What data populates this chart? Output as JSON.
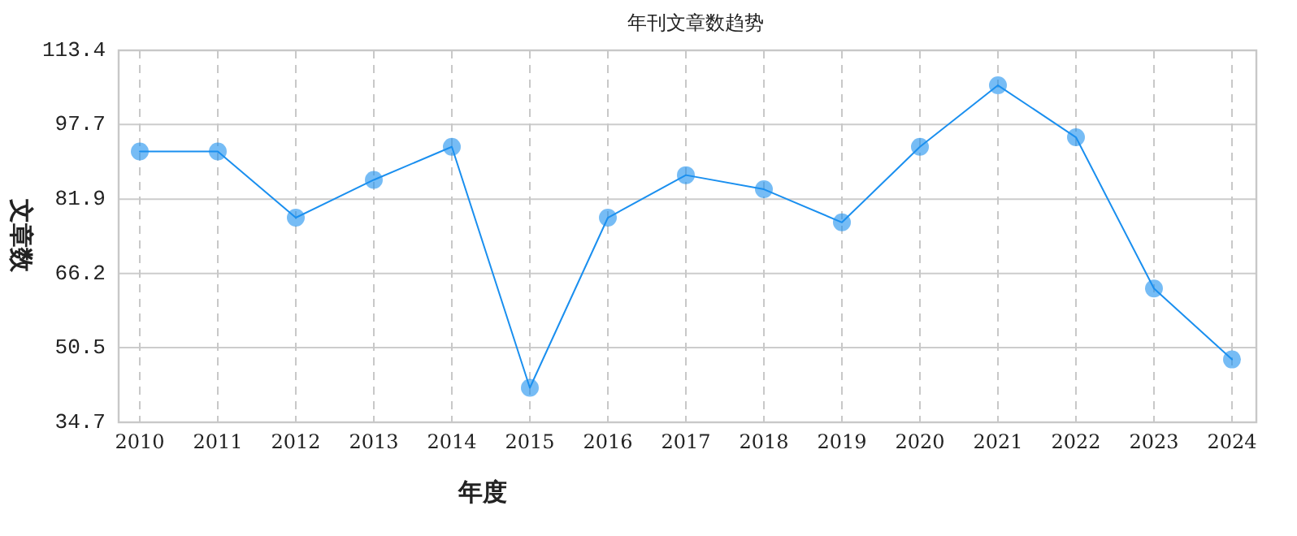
{
  "chart_data": {
    "type": "line",
    "title": "年刊文章数趋势",
    "xlabel": "年度",
    "ylabel": "文章数",
    "categories": [
      "2010",
      "2011",
      "2012",
      "2013",
      "2014",
      "2015",
      "2016",
      "2017",
      "2018",
      "2019",
      "2020",
      "2021",
      "2022",
      "2023",
      "2024"
    ],
    "series": [
      {
        "color": "#1a8fef",
        "values": [
          92,
          92,
          78,
          86,
          93,
          42,
          78,
          87,
          84,
          77,
          93,
          106,
          95,
          63,
          48
        ]
      }
    ],
    "ylim": [
      34.7,
      113.4
    ],
    "yticks": [
      34.7,
      50.5,
      66.2,
      81.9,
      97.7,
      113.4
    ],
    "grid": true,
    "marker": "circle",
    "line_style": "solid"
  }
}
